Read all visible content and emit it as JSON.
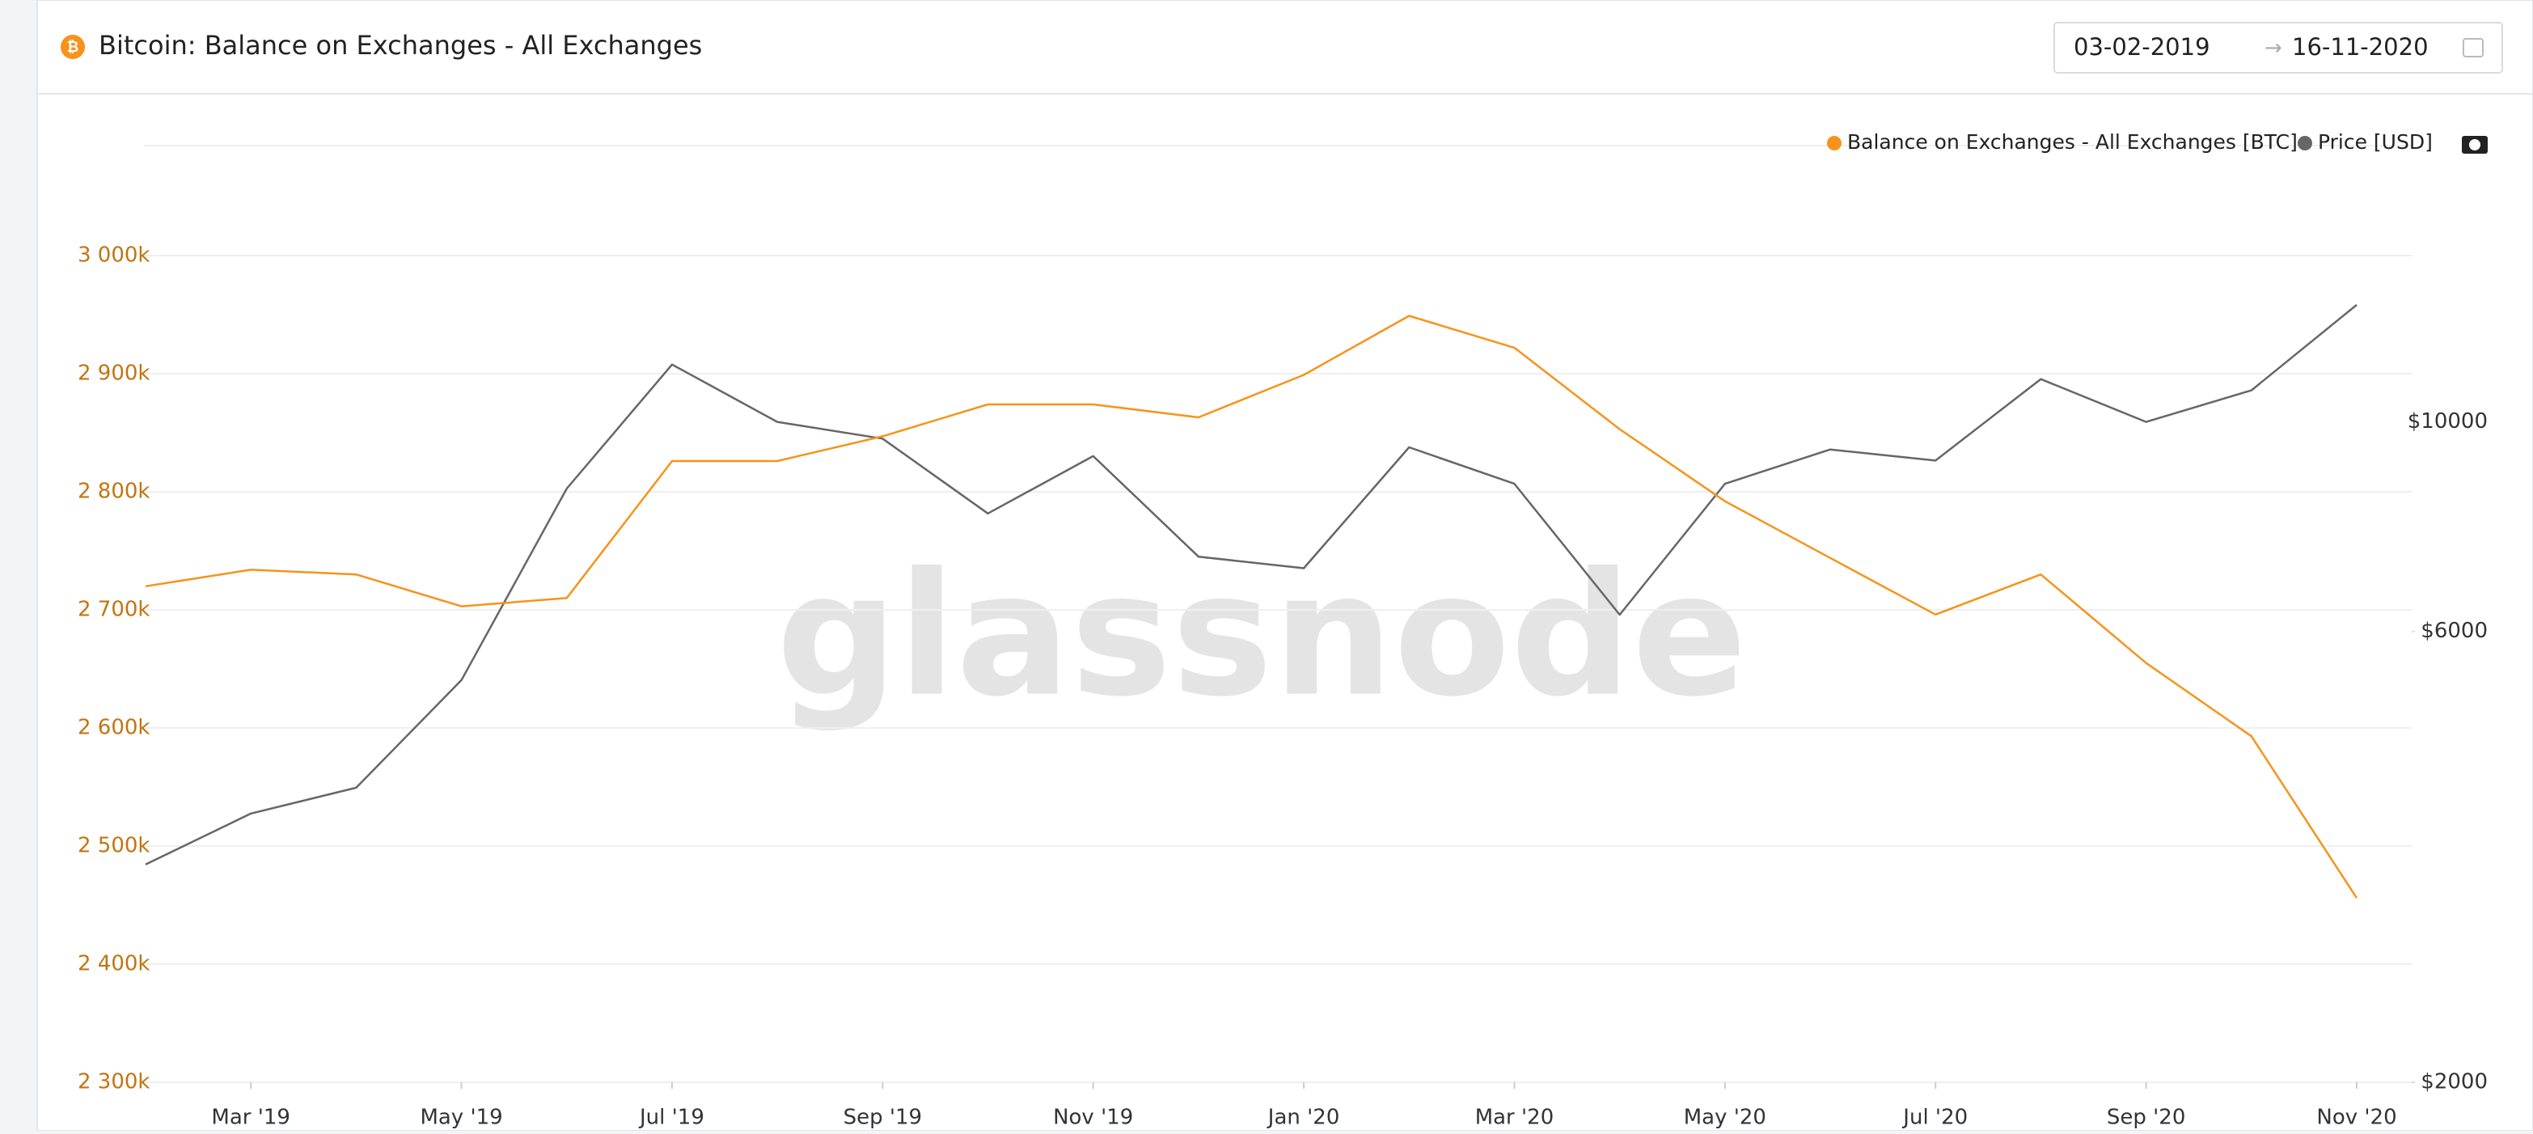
{
  "header": {
    "title": "Bitcoin: Balance on Exchanges - All Exchanges",
    "date_from": "03-02-2019",
    "date_to": "16-11-2020"
  },
  "chart_data": {
    "type": "line",
    "watermark": "glassnode",
    "x": [
      "2019-02",
      "2019-03",
      "2019-04",
      "2019-05",
      "2019-06",
      "2019-07",
      "2019-08",
      "2019-09",
      "2019-10",
      "2019-11",
      "2019-12",
      "2020-01",
      "2020-02",
      "2020-03",
      "2020-04",
      "2020-05",
      "2020-06",
      "2020-07",
      "2020-08",
      "2020-09",
      "2020-10",
      "2020-11"
    ],
    "xlim": [
      "2019-02",
      "2020-11"
    ],
    "xticks": [
      {
        "value": "2019-03",
        "label": "Mar '19"
      },
      {
        "value": "2019-05",
        "label": "May '19"
      },
      {
        "value": "2019-07",
        "label": "Jul '19"
      },
      {
        "value": "2019-09",
        "label": "Sep '19"
      },
      {
        "value": "2019-11",
        "label": "Nov '19"
      },
      {
        "value": "2020-01",
        "label": "Jan '20"
      },
      {
        "value": "2020-03",
        "label": "Mar '20"
      },
      {
        "value": "2020-05",
        "label": "May '20"
      },
      {
        "value": "2020-07",
        "label": "Jul '20"
      },
      {
        "value": "2020-09",
        "label": "Sep '20"
      },
      {
        "value": "2020-11",
        "label": "Nov '20"
      }
    ],
    "series": [
      {
        "name": "Balance on Exchanges - All Exchanges [BTC]",
        "color": "#f7931a",
        "values": [
          2720000,
          2734000,
          2730000,
          2703000,
          2710000,
          2826000,
          2826000,
          2847000,
          2874000,
          2874000,
          2863000,
          2899000,
          2949000,
          2922000,
          2853000,
          2792000,
          2744000,
          2696000,
          2730000,
          2655000,
          2593000,
          2456000
        ]
      },
      {
        "name": "Price [USD]",
        "color": "#666666",
        "axis": "y2",
        "values": [
          3400,
          3850,
          4100,
          5330,
          8500,
          11500,
          10000,
          9600,
          8000,
          9200,
          7200,
          7000,
          9400,
          8600,
          6250,
          8600,
          9350,
          9100,
          11100,
          10000,
          10800,
          13300
        ]
      }
    ],
    "ylim": [
      2300000,
      3100000
    ],
    "yticks": [
      {
        "value": 2300000,
        "label": "2 300k"
      },
      {
        "value": 2400000,
        "label": "2 400k"
      },
      {
        "value": 2500000,
        "label": "2 500k"
      },
      {
        "value": 2600000,
        "label": "2 600k"
      },
      {
        "value": 2700000,
        "label": "2 700k"
      },
      {
        "value": 2800000,
        "label": "2 800k"
      },
      {
        "value": 2900000,
        "label": "2 900k"
      },
      {
        "value": 3000000,
        "label": "3 000k"
      }
    ],
    "y2lim": [
      2000,
      20000
    ],
    "y2log": true,
    "y2ticks": [
      {
        "value": 2000,
        "label": "$2000"
      },
      {
        "value": 6000,
        "label": "$6000"
      },
      {
        "value": 10000,
        "label": "$10000"
      }
    ],
    "grid": true
  }
}
